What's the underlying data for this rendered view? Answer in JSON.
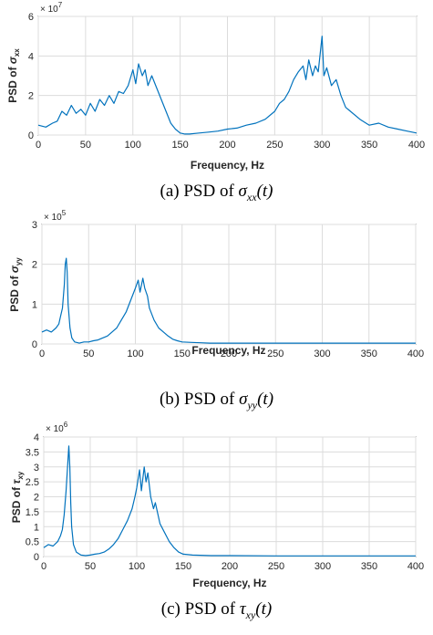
{
  "charts": [
    {
      "type": "line",
      "ylabel_prefix": "PSD of ",
      "ylabel_symbol": "σ",
      "ylabel_sub": "xx",
      "xlabel": "Frequency, Hz",
      "multiplier_base": "× 10",
      "multiplier_exp": "7",
      "xlim": [
        0,
        400
      ],
      "ylim": [
        0,
        6
      ],
      "xticks": [
        "0",
        "50",
        "100",
        "150",
        "200",
        "250",
        "300",
        "350",
        "400"
      ],
      "yticks": [
        "0",
        "2",
        "4",
        "6"
      ],
      "grid": true,
      "caption_prefix": "(a) PSD of",
      "caption_symbol": "σ",
      "caption_sub": "xx",
      "caption_suffix": "(t)"
    },
    {
      "type": "line",
      "ylabel_prefix": "PSD of ",
      "ylabel_symbol": "σ",
      "ylabel_sub": "yy",
      "xlabel": "Frequency, Hz",
      "multiplier_base": "× 10",
      "multiplier_exp": "5",
      "xlim": [
        0,
        400
      ],
      "ylim": [
        0,
        3
      ],
      "xticks": [
        "0",
        "50",
        "100",
        "150",
        "200",
        "250",
        "300",
        "350",
        "400"
      ],
      "yticks": [
        "0",
        "1",
        "2",
        "3"
      ],
      "grid": true,
      "caption_prefix": "(b) PSD of",
      "caption_symbol": "σ",
      "caption_sub": "yy",
      "caption_suffix": "(t)"
    },
    {
      "type": "line",
      "ylabel_prefix": "PSD of ",
      "ylabel_symbol": "τ",
      "ylabel_sub": "xy",
      "xlabel": "Frequency, Hz",
      "multiplier_base": "× 10",
      "multiplier_exp": "6",
      "xlim": [
        0,
        400
      ],
      "ylim": [
        0,
        4
      ],
      "xticks": [
        "0",
        "50",
        "100",
        "150",
        "200",
        "250",
        "300",
        "350",
        "400"
      ],
      "yticks": [
        "0",
        "0.5",
        "1",
        "1.5",
        "2",
        "2.5",
        "3",
        "3.5",
        "4"
      ],
      "grid": true,
      "caption_prefix": "(c) PSD of",
      "caption_symbol": "τ",
      "caption_sub": "xy",
      "caption_suffix": "(t)"
    }
  ],
  "chart_data": [
    {
      "type": "line",
      "series_color": "#0072bd",
      "x": [
        0,
        8,
        15,
        20,
        25,
        30,
        35,
        40,
        45,
        50,
        55,
        60,
        65,
        70,
        75,
        80,
        85,
        90,
        95,
        100,
        103,
        106,
        110,
        113,
        116,
        120,
        125,
        130,
        135,
        140,
        145,
        150,
        155,
        160,
        170,
        180,
        190,
        200,
        210,
        220,
        230,
        240,
        250,
        255,
        260,
        265,
        270,
        275,
        280,
        283,
        286,
        290,
        293,
        296,
        300,
        302,
        305,
        310,
        315,
        320,
        325,
        330,
        340,
        350,
        360,
        370,
        380,
        390,
        400
      ],
      "y": [
        0.5,
        0.4,
        0.6,
        0.7,
        1.2,
        1.0,
        1.5,
        1.1,
        1.3,
        1.0,
        1.6,
        1.2,
        1.8,
        1.5,
        2.0,
        1.6,
        2.2,
        2.1,
        2.5,
        3.3,
        2.6,
        3.6,
        3.0,
        3.3,
        2.5,
        3.0,
        2.4,
        1.8,
        1.2,
        0.6,
        0.3,
        0.1,
        0.05,
        0.05,
        0.1,
        0.15,
        0.2,
        0.3,
        0.35,
        0.5,
        0.6,
        0.8,
        1.2,
        1.6,
        1.8,
        2.2,
        2.8,
        3.2,
        3.5,
        2.8,
        3.8,
        3.0,
        3.5,
        3.2,
        5.0,
        3.0,
        3.4,
        2.5,
        2.8,
        2.0,
        1.4,
        1.2,
        0.8,
        0.5,
        0.6,
        0.4,
        0.3,
        0.2,
        0.1
      ]
    },
    {
      "type": "line",
      "series_color": "#0072bd",
      "x": [
        0,
        5,
        10,
        15,
        18,
        20,
        22,
        24,
        25,
        26,
        27,
        28,
        30,
        32,
        35,
        40,
        45,
        50,
        55,
        60,
        65,
        70,
        75,
        80,
        85,
        90,
        95,
        100,
        103,
        105,
        108,
        110,
        113,
        115,
        120,
        125,
        130,
        135,
        140,
        145,
        150,
        160,
        170,
        180,
        200,
        220,
        250,
        300,
        350,
        400
      ],
      "y": [
        0.3,
        0.35,
        0.3,
        0.4,
        0.5,
        0.7,
        0.9,
        1.5,
        2.0,
        2.15,
        1.8,
        1.0,
        0.4,
        0.15,
        0.05,
        0.02,
        0.05,
        0.05,
        0.08,
        0.1,
        0.15,
        0.2,
        0.3,
        0.4,
        0.6,
        0.8,
        1.1,
        1.4,
        1.6,
        1.3,
        1.65,
        1.4,
        1.2,
        0.9,
        0.6,
        0.4,
        0.3,
        0.2,
        0.12,
        0.08,
        0.05,
        0.04,
        0.03,
        0.02,
        0.02,
        0.02,
        0.02,
        0.02,
        0.02,
        0.02
      ]
    },
    {
      "type": "line",
      "series_color": "#0072bd",
      "x": [
        0,
        5,
        10,
        15,
        18,
        20,
        22,
        24,
        26,
        27,
        28,
        29,
        30,
        32,
        35,
        40,
        45,
        50,
        55,
        60,
        65,
        70,
        75,
        80,
        85,
        90,
        95,
        98,
        100,
        103,
        105,
        108,
        110,
        112,
        115,
        118,
        120,
        125,
        130,
        135,
        140,
        145,
        150,
        160,
        180,
        200,
        250,
        300,
        350,
        400
      ],
      "y": [
        0.3,
        0.4,
        0.35,
        0.5,
        0.7,
        0.9,
        1.4,
        2.2,
        3.2,
        3.7,
        3.0,
        1.8,
        1.0,
        0.4,
        0.15,
        0.05,
        0.03,
        0.05,
        0.08,
        0.1,
        0.15,
        0.25,
        0.4,
        0.6,
        0.9,
        1.2,
        1.6,
        2.0,
        2.3,
        2.9,
        2.2,
        3.0,
        2.5,
        2.8,
        2.0,
        1.6,
        1.8,
        1.1,
        0.8,
        0.5,
        0.3,
        0.15,
        0.08,
        0.05,
        0.03,
        0.03,
        0.02,
        0.02,
        0.02,
        0.02
      ]
    }
  ]
}
